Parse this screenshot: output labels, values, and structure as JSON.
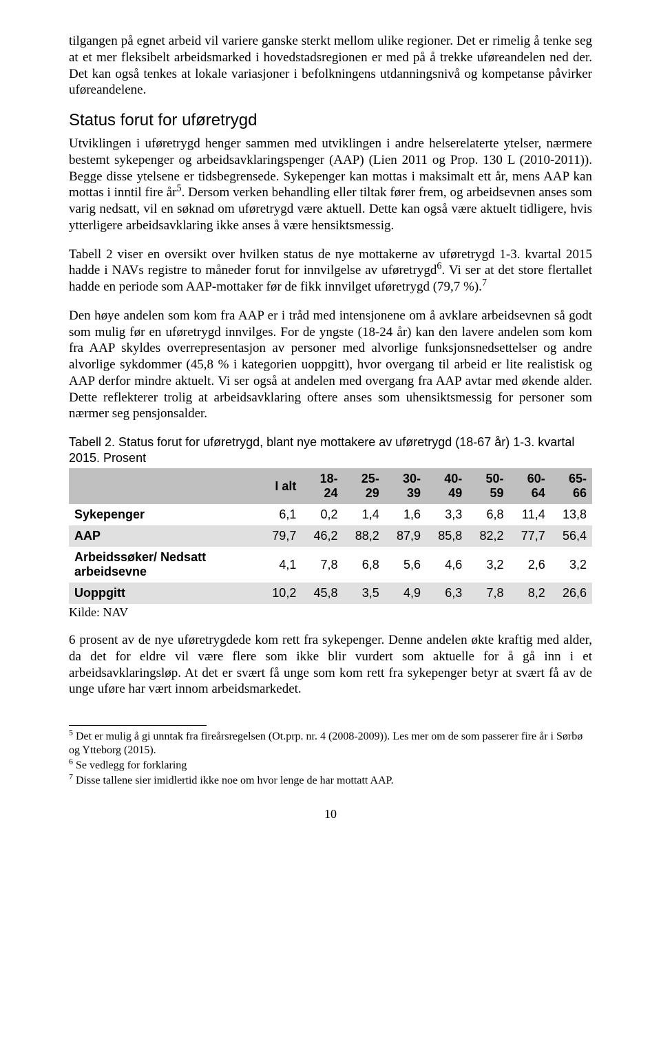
{
  "para1": "tilgangen på egnet arbeid vil variere ganske sterkt mellom ulike regioner. Det er rimelig å tenke seg at et mer fleksibelt arbeidsmarked i hovedstadsregionen er med på å trekke uføreandelen ned der. Det kan også tenkes at lokale variasjoner i befolkningens utdanningsnivå og kompetanse påvirker uføreandelene.",
  "heading2": "Status forut for uføretrygd",
  "para2_a": "Utviklingen i uføretrygd henger sammen med utviklingen i andre helserelaterte ytelser, nærmere bestemt sykepenger og arbeidsavklaringspenger (AAP) (Lien 2011 og Prop. 130 L (2010-2011)). Begge disse ytelsene er tidsbegrensede. Sykepenger kan mottas i maksimalt ett år, mens AAP kan mottas i inntil fire år",
  "para2_b": ". Dersom verken behandling eller tiltak fører frem, og arbeidsevnen anses som varig nedsatt, vil en søknad om uføretrygd være aktuell. Dette kan også være aktuelt tidligere, hvis ytterligere arbeidsavklaring ikke anses å være hensiktsmessig.",
  "para3_a": "Tabell 2 viser en oversikt over hvilken status de nye mottakerne av uføretrygd 1-3. kvartal 2015 hadde i NAVs registre to måneder forut for innvilgelse av uføretrygd",
  "para3_b": ". Vi ser at det store flertallet hadde en periode som AAP-mottaker før de fikk innvilget uføretrygd (79,7 %).",
  "para4": "Den høye andelen som kom fra AAP er i tråd med intensjonene om å avklare arbeidsevnen så godt som mulig før en uføretrygd innvilges. For de yngste (18-24 år) kan den lavere andelen som kom fra AAP skyldes overrepresentasjon av personer med alvorlige funksjonsnedsettelser og andre alvorlige sykdommer (45,8 % i kategorien uoppgitt), hvor overgang til arbeid er lite realistisk og AAP derfor mindre aktuelt. Vi ser også at andelen med overgang fra AAP avtar med økende alder. Dette reflekterer trolig at arbeidsavklaring oftere anses som uhensiktsmessig for personer som nærmer seg pensjonsalder.",
  "table": {
    "caption": "Tabell 2. Status forut for uføretrygd, blant nye mottakere av uføretrygd (18-67 år) 1-3. kvartal 2015. Prosent",
    "columns": [
      "",
      "I alt",
      "18-24",
      "25-29",
      "30-39",
      "40-49",
      "50-59",
      "60-64",
      "65-66"
    ],
    "rows": [
      {
        "label": "Sykepenger",
        "cells": [
          "6,1",
          "0,2",
          "1,4",
          "1,6",
          "3,3",
          "6,8",
          "11,4",
          "13,8"
        ]
      },
      {
        "label": "AAP",
        "cells": [
          "79,7",
          "46,2",
          "88,2",
          "87,9",
          "85,8",
          "82,2",
          "77,7",
          "56,4"
        ]
      },
      {
        "label": "Arbeidssøker/ Nedsatt arbeidsevne",
        "cells": [
          "4,1",
          "7,8",
          "6,8",
          "5,6",
          "4,6",
          "3,2",
          "2,6",
          "3,2"
        ]
      },
      {
        "label": "Uoppgitt",
        "cells": [
          "10,2",
          "45,8",
          "3,5",
          "4,9",
          "6,3",
          "7,8",
          "8,2",
          "26,6"
        ]
      }
    ],
    "source": "Kilde: NAV",
    "header_bg": "#c0c0c0",
    "band_bg": "#e0e0e0"
  },
  "para5": "6 prosent av de nye uføretrygdede kom rett fra sykepenger. Denne andelen økte kraftig med alder, da det for eldre vil være flere som ikke blir vurdert som aktuelle for å gå inn i et arbeidsavklaringsløp. At det er svært få unge som kom rett fra sykepenger betyr at svært få av de unge uføre har vært innom arbeidsmarkedet.",
  "footnotes": {
    "fn5_sup": "5",
    "fn5": " Det er mulig å gi unntak fra fireårsregelsen (Ot.prp. nr. 4 (2008-2009)). Les mer om de som passerer fire år i Sørbø og Ytteborg (2015).",
    "fn6_sup": "6",
    "fn6": " Se vedlegg for forklaring",
    "fn7_sup": "7",
    "fn7": " Disse tallene sier imidlertid ikke noe om hvor lenge de har mottatt AAP."
  },
  "sup5": "5",
  "sup6": "6",
  "sup7": "7",
  "page_number": "10"
}
